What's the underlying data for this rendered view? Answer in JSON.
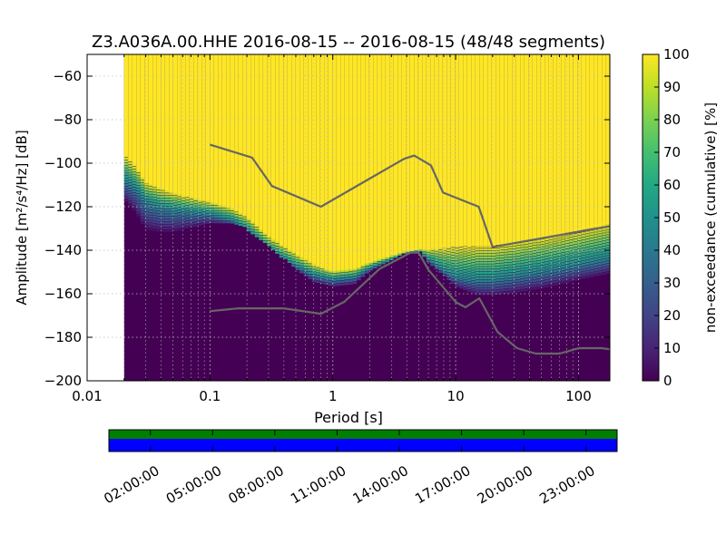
{
  "chart_data": {
    "type": "heatmap",
    "title": "Z3.A036A.00.HHE   2016-08-15 -- 2016-08-15  (48/48 segments)",
    "xlabel": "Period [s]",
    "ylabel": "Amplitude [m²/s⁴/Hz] [dB]",
    "x_scale": "log",
    "xlim": [
      0.01,
      180
    ],
    "ylim": [
      -200,
      -50
    ],
    "x_ticks": [
      0.01,
      0.1,
      1,
      10,
      100
    ],
    "x_tick_labels": [
      "0.01",
      "0.1",
      "1",
      "10",
      "100"
    ],
    "y_ticks": [
      -200,
      -180,
      -160,
      -140,
      -120,
      -100,
      -80,
      -60
    ],
    "y_tick_labels": [
      "−200",
      "−180",
      "−160",
      "−140",
      "−120",
      "−100",
      "−80",
      "−60"
    ],
    "grid": true,
    "colorbar": {
      "label": "non-exceedance (cumulative) [%]",
      "range": [
        0,
        100
      ],
      "ticks": [
        0,
        10,
        20,
        30,
        40,
        50,
        60,
        70,
        80,
        90,
        100
      ],
      "tick_labels": [
        "0",
        "10",
        "20",
        "30",
        "40",
        "50",
        "60",
        "70",
        "80",
        "90",
        "100"
      ],
      "colormap": "viridis"
    },
    "psd_data_start_period": 0.02,
    "noise_model_high": {
      "period": [
        0.1,
        0.22,
        0.32,
        0.8,
        3.8,
        4.6,
        6.3,
        7.9,
        15.4,
        20,
        354
      ],
      "db": [
        -91.5,
        -97.4,
        -110.5,
        -120,
        -98,
        -96.5,
        -101,
        -113.5,
        -120,
        -138.5,
        -126
      ]
    },
    "noise_model_low": {
      "period": [
        0.1,
        0.17,
        0.4,
        0.8,
        1.24,
        2.4,
        4.3,
        5,
        6,
        10,
        12,
        15.6,
        21.9,
        31.6,
        45,
        70,
        101,
        154,
        328
      ],
      "db": [
        -168,
        -166.7,
        -166.7,
        -169.2,
        -163.7,
        -148.6,
        -141.1,
        -141.1,
        -149,
        -163.8,
        -166.2,
        -162.1,
        -177.5,
        -185,
        -187.5,
        -187.5,
        -185,
        -185,
        -187.5
      ]
    },
    "percentile_bands": {
      "period": [
        0.02,
        0.025,
        0.03,
        0.04,
        0.05,
        0.07,
        0.1,
        0.15,
        0.2,
        0.3,
        0.5,
        0.7,
        1.0,
        1.5,
        2,
        3,
        4,
        5,
        6,
        8,
        10,
        15,
        20,
        30,
        50,
        100,
        180
      ],
      "p10": [
        -118,
        -124,
        -132,
        -133,
        -133,
        -131,
        -129,
        -129,
        -131,
        -138,
        -150,
        -156,
        -158,
        -157,
        -151,
        -146,
        -142,
        -141,
        -147,
        -153,
        -158,
        -162,
        -162,
        -161,
        -159,
        -155,
        -152
      ],
      "p50": [
        -108,
        -112,
        -118,
        -121,
        -122,
        -123,
        -124,
        -127,
        -131,
        -140,
        -148,
        -152,
        -154,
        -153,
        -149,
        -145,
        -142,
        -141,
        -145,
        -150,
        -153,
        -154,
        -154,
        -152,
        -150,
        -147,
        -144
      ],
      "p100": [
        -96,
        -102,
        -109,
        -112,
        -114,
        -116,
        -118,
        -121,
        -125,
        -134,
        -142,
        -147,
        -150,
        -149,
        -146,
        -143,
        -141,
        -140,
        -140,
        -139,
        -138,
        -138,
        -138,
        -136,
        -134,
        -131,
        -128
      ]
    },
    "timeline": {
      "tick_labels": [
        "02:00:00",
        "05:00:00",
        "08:00:00",
        "11:00:00",
        "14:00:00",
        "17:00:00",
        "20:00:00",
        "23:00:00"
      ],
      "tick_hours": [
        2,
        5,
        8,
        11,
        14,
        17,
        20,
        23
      ],
      "range_hours": [
        0,
        24.5
      ],
      "data_color": "#007f00",
      "psd_color": "#0000ff"
    }
  },
  "colors": {
    "noise_model_line": "#666666",
    "viridis_low": "#440154",
    "viridis_high": "#fde725"
  }
}
